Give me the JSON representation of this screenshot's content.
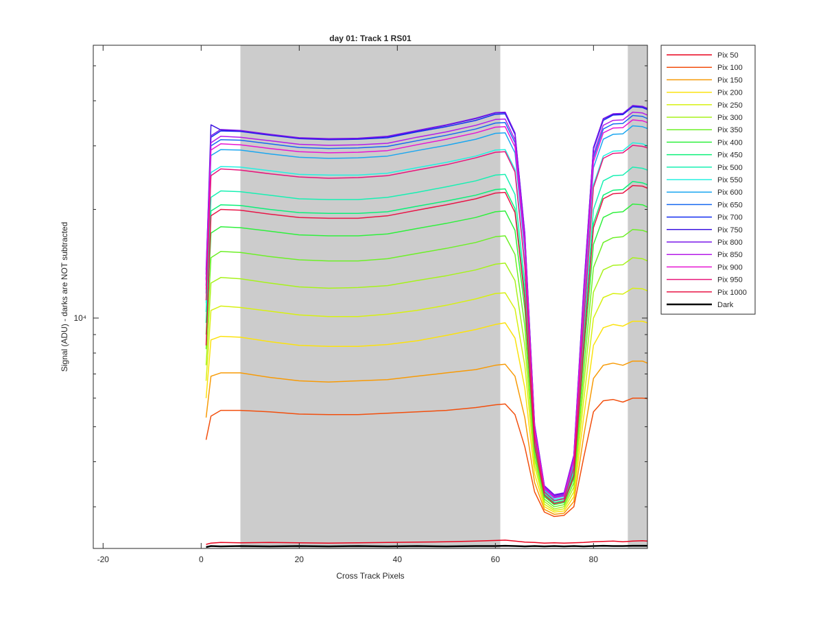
{
  "chart_data": {
    "type": "line",
    "title": "day 01: Track 1  RS01",
    "xlabel": "Cross Track Pixels",
    "ylabel": "Signal (ADU) - darks are NOT subtracted",
    "xlim": [
      -22,
      91
    ],
    "ylim": [
      2300,
      57000
    ],
    "yscale": "log",
    "grid": false,
    "x_ticks": [
      -20,
      0,
      20,
      40,
      60,
      80
    ],
    "x_tick_labels": [
      "-20",
      "0",
      "20",
      "40",
      "60",
      "80"
    ],
    "y_ticks": [
      10000
    ],
    "y_tick_labels": [
      "10⁴"
    ],
    "legend_position": "outside-top-right",
    "shaded_regions": [
      [
        8,
        61
      ],
      [
        87,
        91
      ]
    ],
    "x": [
      1,
      2,
      4,
      8,
      14,
      20,
      26,
      32,
      38,
      44,
      50,
      56,
      60,
      62,
      64,
      66,
      68,
      70,
      72,
      74,
      76,
      78,
      80,
      82,
      84,
      86,
      88,
      90,
      91
    ],
    "series": [
      {
        "name": "Pix 50",
        "color": "#e8001b",
        "values": [
          2360,
          2380,
          2390,
          2385,
          2390,
          2385,
          2380,
          2385,
          2390,
          2395,
          2400,
          2410,
          2420,
          2425,
          2410,
          2395,
          2390,
          2380,
          2385,
          2380,
          2385,
          2390,
          2400,
          2405,
          2410,
          2400,
          2410,
          2415,
          2410
        ]
      },
      {
        "name": "Pix 100",
        "color": "#f24e0c",
        "values": [
          4600,
          5350,
          5550,
          5550,
          5500,
          5420,
          5400,
          5400,
          5450,
          5500,
          5550,
          5650,
          5750,
          5780,
          5400,
          4400,
          3300,
          2900,
          2820,
          2840,
          3000,
          4100,
          5500,
          5900,
          5950,
          5850,
          6000,
          6000,
          5980
        ]
      },
      {
        "name": "Pix 150",
        "color": "#f79a05",
        "values": [
          5300,
          6900,
          7050,
          7050,
          6850,
          6700,
          6650,
          6700,
          6750,
          6900,
          7050,
          7200,
          7400,
          7450,
          6900,
          5300,
          3500,
          2950,
          2860,
          2880,
          3100,
          4700,
          6800,
          7400,
          7500,
          7400,
          7600,
          7600,
          7500
        ]
      },
      {
        "name": "Pix 200",
        "color": "#fbe20c",
        "values": [
          6000,
          8700,
          8900,
          8850,
          8600,
          8400,
          8350,
          8350,
          8450,
          8650,
          8950,
          9300,
          9600,
          9700,
          8800,
          6400,
          3700,
          3000,
          2900,
          2920,
          3200,
          5300,
          8400,
          9400,
          9600,
          9500,
          9800,
          9800,
          9700
        ]
      },
      {
        "name": "Pix 250",
        "color": "#d7f010",
        "values": [
          6700,
          10500,
          10800,
          10700,
          10450,
          10200,
          10100,
          10100,
          10250,
          10500,
          10850,
          11300,
          11700,
          11750,
          10600,
          7400,
          3900,
          3050,
          2930,
          2960,
          3300,
          5900,
          10000,
          11400,
          11700,
          11650,
          12100,
          12050,
          11900
        ]
      },
      {
        "name": "Pix 300",
        "color": "#a7f21a",
        "values": [
          7400,
          12500,
          12950,
          12850,
          12500,
          12200,
          12100,
          12150,
          12300,
          12700,
          13100,
          13600,
          14100,
          14200,
          12700,
          8400,
          4050,
          3100,
          2960,
          3000,
          3400,
          6500,
          11800,
          13600,
          14000,
          14050,
          14700,
          14600,
          14400
        ]
      },
      {
        "name": "Pix 350",
        "color": "#6cf026",
        "values": [
          8200,
          14700,
          15300,
          15200,
          14800,
          14500,
          14400,
          14400,
          14600,
          15100,
          15600,
          16200,
          16800,
          16900,
          15000,
          9500,
          4200,
          3150,
          3000,
          3040,
          3500,
          7100,
          13800,
          16200,
          16700,
          16800,
          17600,
          17500,
          17300
        ]
      },
      {
        "name": "Pix 400",
        "color": "#2ef03c",
        "values": [
          9000,
          17200,
          17900,
          17800,
          17400,
          17000,
          16900,
          16900,
          17100,
          17700,
          18300,
          19000,
          19700,
          19800,
          17500,
          10600,
          4350,
          3200,
          3040,
          3080,
          3600,
          7800,
          16000,
          19000,
          19600,
          19700,
          20700,
          20600,
          20300
        ]
      },
      {
        "name": "Pix 450",
        "color": "#0af078",
        "values": [
          9700,
          19800,
          20600,
          20500,
          20000,
          19600,
          19500,
          19500,
          19700,
          20400,
          21100,
          21900,
          22700,
          22800,
          20100,
          11700,
          4500,
          3250,
          3080,
          3120,
          3700,
          8500,
          18300,
          21900,
          22600,
          22700,
          23900,
          23700,
          23400
        ]
      },
      {
        "name": "Pix 500",
        "color": "#16f0b2",
        "values": [
          10400,
          21600,
          22500,
          22400,
          21900,
          21400,
          21300,
          21300,
          21600,
          22300,
          23100,
          24000,
          24900,
          25000,
          22000,
          12500,
          4600,
          3280,
          3110,
          3150,
          3780,
          9000,
          20000,
          24000,
          24800,
          24900,
          26200,
          26000,
          25700
        ]
      },
      {
        "name": "Pix 550",
        "color": "#24f0e0",
        "values": [
          11000,
          25300,
          26300,
          26200,
          25600,
          25000,
          24900,
          24900,
          25200,
          26100,
          27000,
          28100,
          29200,
          29300,
          25800,
          14100,
          4750,
          3320,
          3140,
          3180,
          3900,
          9900,
          23400,
          28100,
          29000,
          29100,
          30600,
          30400,
          30000
        ]
      },
      {
        "name": "Pix 600",
        "color": "#1aa6f0",
        "values": [
          11700,
          28200,
          29300,
          29200,
          28500,
          27900,
          27700,
          27800,
          28100,
          29100,
          30100,
          31300,
          32500,
          32600,
          28700,
          15300,
          4850,
          3350,
          3170,
          3210,
          3980,
          10700,
          26100,
          31300,
          32300,
          32400,
          34100,
          33900,
          33500
        ]
      },
      {
        "name": "Pix 650",
        "color": "#1468f0",
        "values": [
          12300,
          30000,
          31200,
          31100,
          30400,
          29700,
          29500,
          29600,
          29900,
          31000,
          32100,
          33400,
          34700,
          34800,
          30600,
          16100,
          4950,
          3380,
          3190,
          3230,
          4050,
          11200,
          27800,
          33400,
          34500,
          34600,
          36400,
          36200,
          35700
        ]
      },
      {
        "name": "Pix 700",
        "color": "#102cf0",
        "values": [
          12800,
          31700,
          33000,
          32900,
          32100,
          31400,
          31200,
          31300,
          31600,
          32800,
          33900,
          35300,
          36700,
          36800,
          32300,
          16900,
          5000,
          3400,
          3210,
          3250,
          4100,
          11700,
          29400,
          35300,
          36500,
          36600,
          38500,
          38300,
          37800
        ]
      },
      {
        "name": "Pix 750",
        "color": "#3c14e0",
        "values": [
          13200,
          34300,
          33200,
          33000,
          32200,
          31500,
          31300,
          31400,
          31800,
          33000,
          34200,
          35700,
          37000,
          37100,
          32500,
          17100,
          5050,
          3420,
          3230,
          3270,
          4150,
          11900,
          29600,
          35600,
          36700,
          36800,
          38700,
          38500,
          38000
        ]
      },
      {
        "name": "Pix 800",
        "color": "#7816e8",
        "values": [
          13600,
          32000,
          33300,
          33100,
          32300,
          31600,
          31400,
          31500,
          31900,
          33100,
          34300,
          35800,
          37100,
          37200,
          32600,
          17200,
          5070,
          3430,
          3240,
          3280,
          4170,
          12000,
          29700,
          35700,
          36800,
          36900,
          38800,
          38600,
          38100
        ]
      },
      {
        "name": "Pix 850",
        "color": "#b41ae8",
        "values": [
          12700,
          30600,
          31900,
          31700,
          31000,
          30300,
          30100,
          30200,
          30500,
          31700,
          32800,
          34200,
          35500,
          35600,
          31200,
          16500,
          4980,
          3400,
          3210,
          3250,
          4100,
          11500,
          28400,
          34200,
          35300,
          35400,
          37200,
          37000,
          36500
        ]
      },
      {
        "name": "Pix 900",
        "color": "#e614d2",
        "values": [
          12000,
          29200,
          30400,
          30200,
          29500,
          28900,
          28700,
          28800,
          29100,
          30200,
          31300,
          32600,
          33800,
          33900,
          29800,
          15800,
          4900,
          3370,
          3180,
          3220,
          4030,
          11000,
          27100,
          32600,
          33600,
          33700,
          35400,
          35200,
          34800
        ]
      },
      {
        "name": "Pix 950",
        "color": "#e8147a",
        "values": [
          11200,
          24800,
          25900,
          25700,
          25100,
          24600,
          24400,
          24500,
          24800,
          25700,
          26600,
          27800,
          28800,
          28900,
          25400,
          13900,
          4700,
          3300,
          3120,
          3160,
          3850,
          9700,
          23000,
          27700,
          28600,
          28700,
          30100,
          29900,
          29600
        ]
      },
      {
        "name": "Pix 1000",
        "color": "#e81446",
        "values": [
          8400,
          19200,
          20000,
          19900,
          19400,
          19000,
          18900,
          18900,
          19200,
          19900,
          20600,
          21400,
          22200,
          22300,
          19600,
          11300,
          4450,
          3230,
          3060,
          3100,
          3650,
          8300,
          17800,
          21400,
          22100,
          22200,
          23300,
          23200,
          22900
        ]
      },
      {
        "name": "Dark",
        "color": "#000000",
        "values": [
          2320,
          2335,
          2330,
          2335,
          2330,
          2335,
          2330,
          2335,
          2330,
          2335,
          2330,
          2335,
          2335,
          2340,
          2335,
          2330,
          2335,
          2330,
          2335,
          2330,
          2335,
          2330,
          2335,
          2340,
          2335,
          2335,
          2340,
          2340,
          2340
        ]
      }
    ]
  }
}
